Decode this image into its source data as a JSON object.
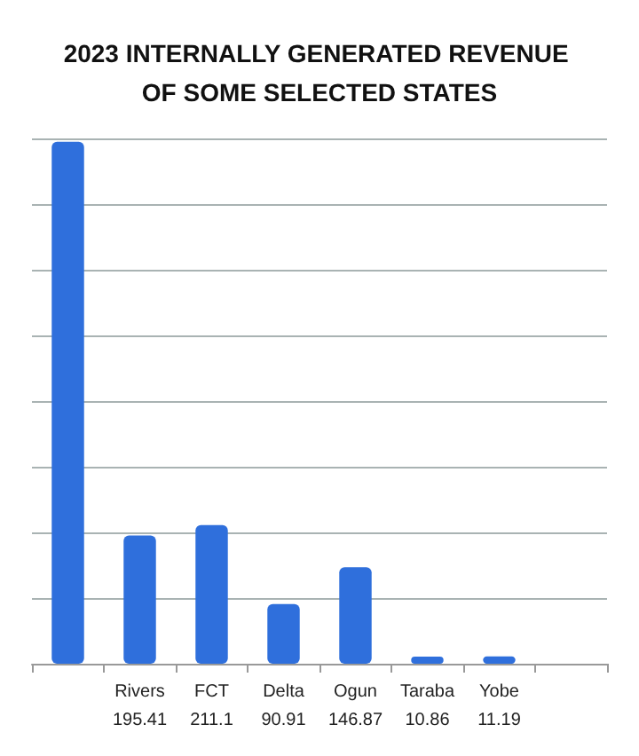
{
  "chart_data": {
    "type": "bar",
    "title": "2023 INTERNALLY GENERATED REVENUE OF SOME SELECTED STATES",
    "categories": [
      null,
      "Rivers",
      "FCT",
      "Delta",
      "Ogun",
      "Taraba",
      "Yobe",
      null
    ],
    "values": [
      795,
      195.41,
      211.1,
      90.91,
      146.87,
      10.86,
      11.19,
      null
    ],
    "value_labels": [
      null,
      "195.41",
      "211.1",
      "90.91",
      "146.87",
      "10.86",
      "11.19",
      null
    ],
    "color": "#2f6fdc",
    "ylim": [
      0,
      800
    ],
    "yticks": [
      {
        "value": 0,
        "label": null
      },
      {
        "value": 100,
        "label": null
      },
      {
        "value": 200,
        "label": null
      },
      {
        "value": 300,
        "label": null
      },
      {
        "value": 400,
        "label": null
      },
      {
        "value": 500,
        "label": null
      },
      {
        "value": 600,
        "label": null
      },
      {
        "value": 700,
        "label": null
      },
      {
        "value": 800,
        "label": null
      }
    ],
    "grid": "y",
    "tick_labels": "x"
  }
}
